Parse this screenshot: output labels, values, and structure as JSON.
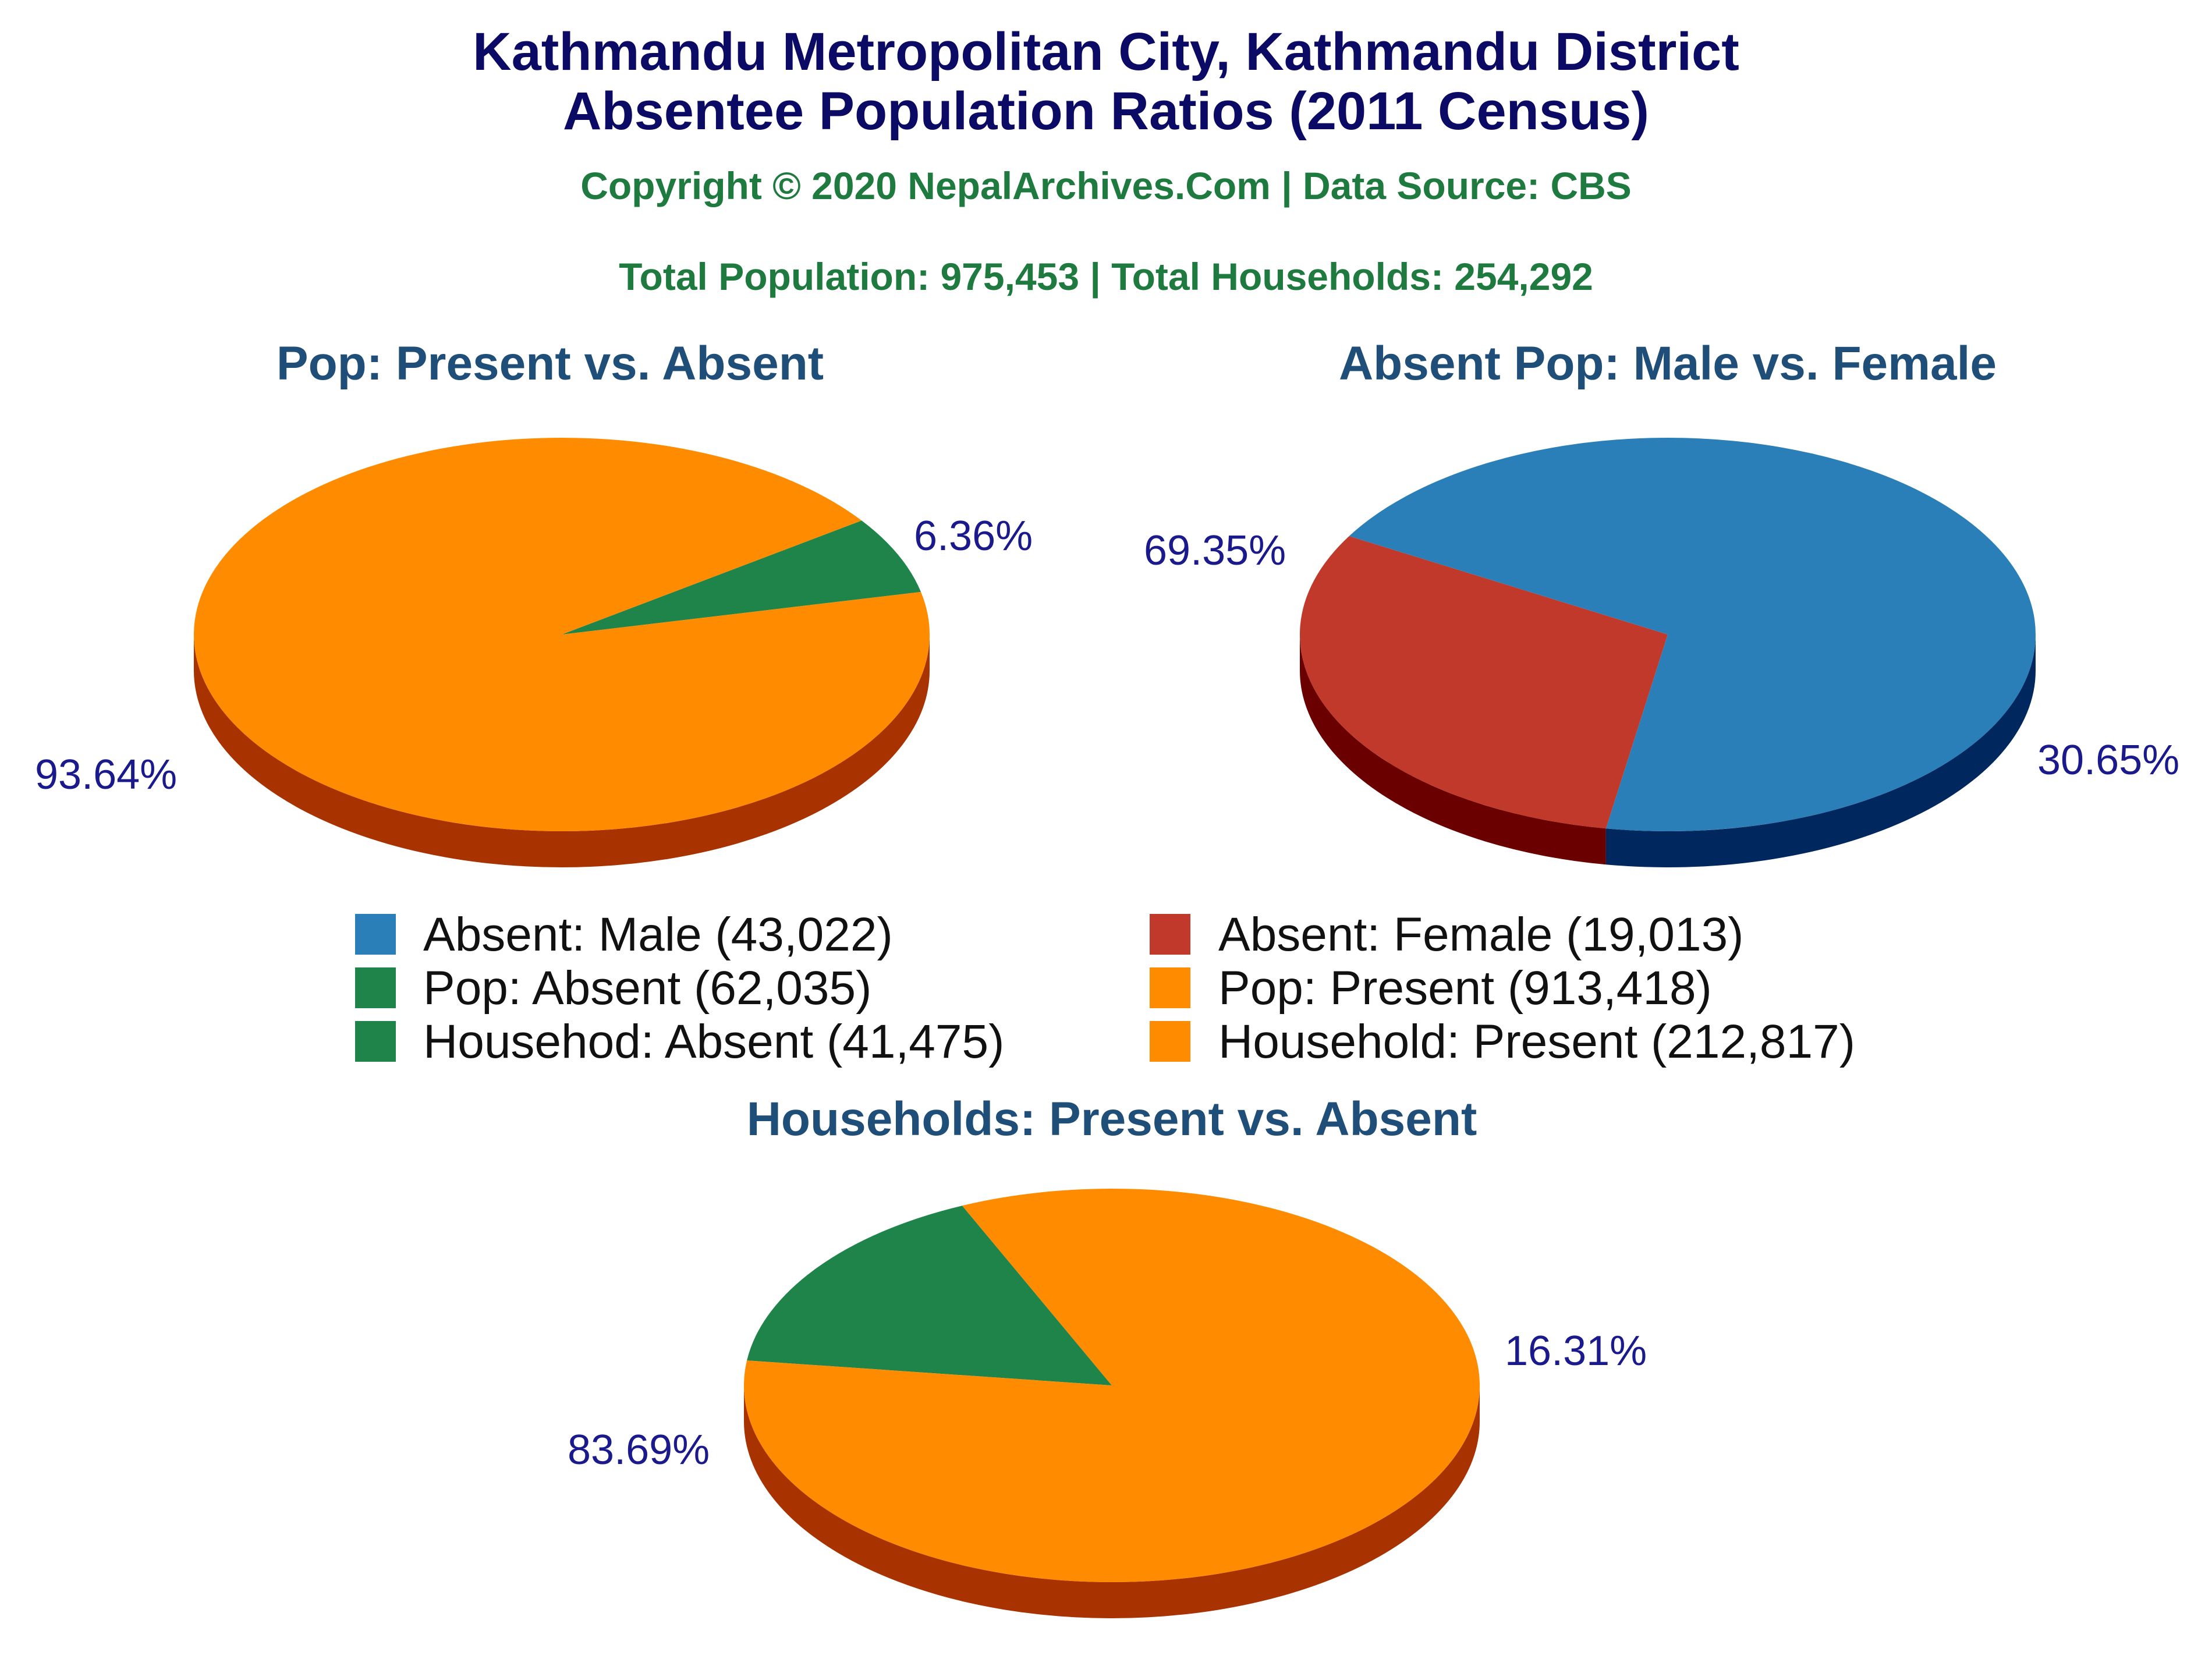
{
  "header": {
    "title_line1": "Kathmandu Metropolitan City, Kathmandu District",
    "title_line2": "Absentee Population Ratios (2011 Census)",
    "copyright": "Copyright © 2020 NepalArchives.Com | Data Source: CBS",
    "totals": "Total Population: 975,453 | Total Households: 254,292"
  },
  "colors": {
    "title": "#0b0b66",
    "subtitle": "#1f7a3f",
    "chart_title": "#1f4e79",
    "percent_label": "#1a1a8c"
  },
  "legend": {
    "items": [
      {
        "label": "Absent: Male (43,022)",
        "color": "#2b7fb8"
      },
      {
        "label": "Absent: Female (19,013)",
        "color": "#c0392b"
      },
      {
        "label": "Pop: Absent (62,035)",
        "color": "#1e8449"
      },
      {
        "label": "Pop: Present (913,418)",
        "color": "#ff8c00"
      },
      {
        "label": "Househod: Absent (41,475)",
        "color": "#1e8449"
      },
      {
        "label": "Household: Present (212,817)",
        "color": "#ff8c00"
      }
    ]
  },
  "chart_data": [
    {
      "type": "pie",
      "title": "Pop: Present vs. Absent",
      "slices": [
        {
          "label": "Pop: Absent",
          "value": 62035,
          "percent": 6.36,
          "percent_label": "6.36%",
          "color": "#1e8449",
          "side_color": "#0e4a25"
        },
        {
          "label": "Pop: Present",
          "value": 913418,
          "percent": 93.64,
          "percent_label": "93.64%",
          "color": "#ff8c00",
          "side_color": "#a83200"
        }
      ]
    },
    {
      "type": "pie",
      "title": "Absent Pop: Male vs. Female",
      "slices": [
        {
          "label": "Absent: Female",
          "value": 19013,
          "percent": 30.65,
          "percent_label": "30.65%",
          "color": "#c0392b",
          "side_color": "#6b0000"
        },
        {
          "label": "Absent: Male",
          "value": 43022,
          "percent": 69.35,
          "percent_label": "69.35%",
          "color": "#2b7fb8",
          "side_color": "#00285e"
        }
      ]
    },
    {
      "type": "pie",
      "title": "Households: Present vs. Absent",
      "slices": [
        {
          "label": "Househod: Absent",
          "value": 41475,
          "percent": 16.31,
          "percent_label": "16.31%",
          "color": "#1e8449",
          "side_color": "#0a3a1c"
        },
        {
          "label": "Household: Present",
          "value": 212817,
          "percent": 83.69,
          "percent_label": "83.69%",
          "color": "#ff8c00",
          "side_color": "#a83200"
        }
      ]
    }
  ]
}
